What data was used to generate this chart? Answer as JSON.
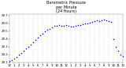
{
  "title": "Barometric Pressure\nper Minute\n(24 Hours)",
  "bg_color": "#ffffff",
  "plot_bg_color": "#ffffff",
  "dot_color": "#0000ff",
  "grid_color": "#aaaaaa",
  "text_color": "#000000",
  "tick_color": "#000000",
  "ylim": [
    29.1,
    29.72
  ],
  "yticks": [
    29.1,
    29.2,
    29.3,
    29.4,
    29.5,
    29.6,
    29.7
  ],
  "xlim": [
    0,
    1440
  ],
  "xtick_positions": [
    0,
    60,
    120,
    180,
    240,
    300,
    360,
    420,
    480,
    540,
    600,
    660,
    720,
    780,
    840,
    900,
    960,
    1020,
    1080,
    1140,
    1200,
    1260,
    1320,
    1380,
    1440
  ],
  "xtick_labels": [
    "12",
    "1",
    "2",
    "3",
    "4",
    "5",
    "6",
    "7",
    "8",
    "9",
    "10",
    "11",
    "12",
    "1",
    "2",
    "3",
    "4",
    "5",
    "6",
    "7",
    "8",
    "9",
    "10",
    "11",
    "12"
  ],
  "x": [
    0,
    30,
    60,
    90,
    120,
    150,
    180,
    210,
    240,
    270,
    300,
    330,
    360,
    390,
    420,
    450,
    480,
    510,
    540,
    570,
    600,
    630,
    660,
    690,
    720,
    750,
    780,
    810,
    840,
    870,
    900,
    930,
    960,
    990,
    1020,
    1050,
    1080,
    1110,
    1140,
    1170,
    1200,
    1230,
    1260,
    1290,
    1320,
    1350,
    1380,
    1410,
    1440
  ],
  "y": [
    29.12,
    29.13,
    29.15,
    29.17,
    29.2,
    29.22,
    29.25,
    29.28,
    29.3,
    29.33,
    29.36,
    29.39,
    29.42,
    29.45,
    29.47,
    29.5,
    29.52,
    29.53,
    29.55,
    29.57,
    29.57,
    29.58,
    29.57,
    29.57,
    29.58,
    29.57,
    29.56,
    29.56,
    29.57,
    29.58,
    29.58,
    29.59,
    29.6,
    29.6,
    29.61,
    29.62,
    29.63,
    29.64,
    29.63,
    29.64,
    29.65,
    29.64,
    29.63,
    29.62,
    29.4,
    29.3,
    29.25,
    29.2,
    29.18
  ],
  "vline_positions": [
    60,
    120,
    180,
    240,
    300,
    360,
    420,
    480,
    540,
    600,
    660,
    720,
    780,
    840,
    900,
    960,
    1020,
    1080,
    1140,
    1200,
    1260,
    1320,
    1380
  ],
  "dot_size": 1.2,
  "title_fontsize": 3.5,
  "tick_fontsize": 2.8
}
